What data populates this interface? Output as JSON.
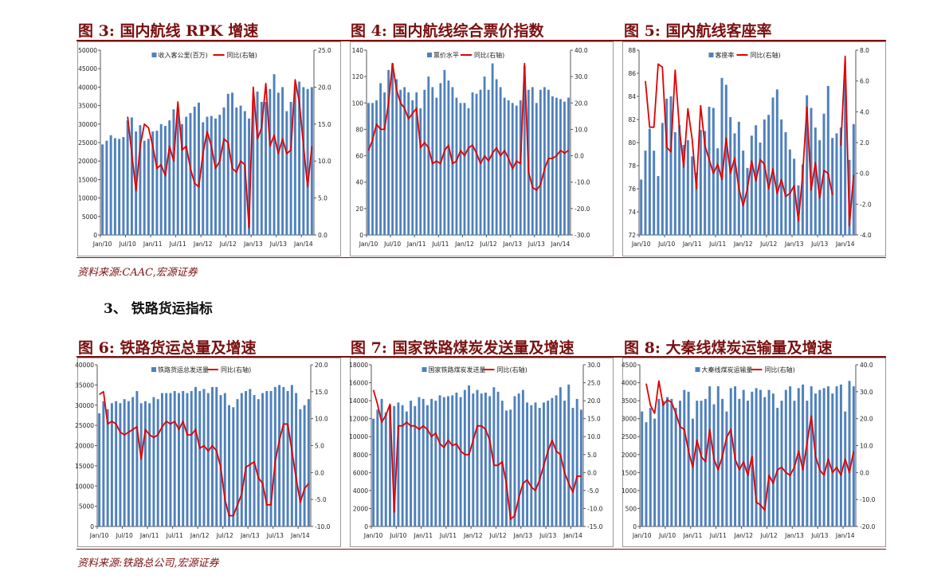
{
  "header": {
    "fig3_title": "图 3: 国内航线 RPK 增速",
    "fig4_title": "图 4: 国内航线综合票价指数",
    "fig5_title": "图 5: 国内航线客座率",
    "fig6_title": "图 6: 铁路货运总量及增速",
    "fig7_title": "图 7: 国家铁路煤炭发送量及增速",
    "fig8_title": "图 8: 大秦线煤炭运输量及增速"
  },
  "source_top": "资料来源:CAAC,宏源证券",
  "section_heading": "3、 铁路货运指标",
  "source_bottom": "资料来源:铁路总公司,宏源证券",
  "colors": {
    "bar": "#4f81bd",
    "line": "#e00000",
    "title": "#7a1010"
  },
  "x_tick_labels": [
    "Jan/10",
    "Jul/10",
    "Jan/11",
    "Jul/11",
    "Jan/12",
    "Jul/12",
    "Jan/13",
    "Jul/13",
    "Jan/14"
  ],
  "chart_data": [
    {
      "id": "fig3",
      "type": "bar+line",
      "x_start": "2010-01",
      "x_end": "2014-03",
      "bar_series": {
        "name": "收入客公里(百万)",
        "ylim": [
          0,
          50000
        ],
        "ticks": [
          "0",
          "5000",
          "10000",
          "15000",
          "20000",
          "25000",
          "30000",
          "35000",
          "40000",
          "45000",
          "50000"
        ],
        "values": [
          24500,
          25500,
          27000,
          26200,
          26000,
          26500,
          31000,
          31800,
          28000,
          29700,
          25500,
          26000,
          28000,
          28200,
          30000,
          29500,
          31000,
          34000,
          34200,
          30000,
          32000,
          33000,
          34700,
          35800,
          30500,
          32000,
          32200,
          31500,
          32500,
          34500,
          38200,
          38500,
          34500,
          35000,
          33500,
          31500,
          36500,
          38800,
          36000,
          36000,
          39500,
          43500,
          38500,
          40000,
          33500,
          36000,
          40000,
          41500,
          40000,
          39500,
          40000
        ]
      },
      "line_series": {
        "name": "同比(右轴)",
        "ylim": [
          0,
          25
        ],
        "ticks": [
          "0.0",
          "5.0",
          "10.0",
          "15.0",
          "20.0",
          "25.0"
        ],
        "values": [
          null,
          null,
          null,
          null,
          null,
          null,
          16,
          11,
          6,
          12,
          15,
          14.5,
          12,
          9,
          9.5,
          8,
          12,
          10,
          18,
          11.5,
          12,
          9,
          7,
          6.5,
          11,
          14,
          12,
          9,
          10,
          13,
          12.5,
          9,
          8.5,
          10,
          9.5,
          1,
          20,
          13,
          14.5,
          20.5,
          12,
          13.5,
          11,
          13,
          11,
          11.5,
          21,
          18,
          12,
          6.5,
          12
        ]
      }
    },
    {
      "id": "fig4",
      "type": "bar+line",
      "x_start": "2010-01",
      "x_end": "2014-03",
      "bar_series": {
        "name": "票价水平",
        "ylim": [
          0,
          140
        ],
        "ticks": [
          "0",
          "20",
          "40",
          "60",
          "80",
          "100",
          "120",
          "140"
        ],
        "values": [
          100,
          100,
          102,
          115,
          108,
          125,
          130,
          118,
          110,
          112,
          108,
          102,
          108,
          96,
          110,
          120,
          112,
          104,
          115,
          125,
          117,
          112,
          104,
          100,
          100,
          96,
          108,
          107,
          110,
          120,
          110,
          130,
          118,
          112,
          104,
          102,
          100,
          98,
          102,
          128,
          110,
          112,
          100,
          110,
          112,
          110,
          105,
          104,
          103,
          101,
          104
        ]
      },
      "line_series": {
        "name": "同比(右轴)",
        "ylim": [
          -30,
          40
        ],
        "ticks": [
          "-30.0",
          "-20.0",
          "-10.0",
          "0.0",
          "10.0",
          "20.0",
          "30.0",
          "40.0"
        ],
        "values": [
          2,
          6,
          12,
          10,
          10,
          20,
          35,
          25,
          20,
          18,
          14,
          16,
          18,
          3,
          5,
          3,
          -3,
          -2,
          -3,
          2,
          4,
          -3,
          -2,
          2,
          0,
          3,
          4,
          1,
          -3,
          0,
          -2,
          1,
          3,
          0,
          2,
          -1,
          -5,
          -2,
          -3,
          35,
          -6,
          -12,
          -13,
          -11,
          -5,
          -1,
          -1,
          0,
          2,
          1,
          2
        ]
      }
    },
    {
      "id": "fig5",
      "type": "bar+line",
      "x_start": "2010-01",
      "x_end": "2014-03",
      "bar_series": {
        "name": "客座率",
        "ylim": [
          72,
          88
        ],
        "ticks": [
          "72",
          "74",
          "76",
          "78",
          "80",
          "82",
          "84",
          "86",
          "88"
        ],
        "values": [
          76.8,
          79.3,
          81.2,
          79.3,
          77.1,
          81.7,
          83.8,
          84,
          80.9,
          81.5,
          79.8,
          80.2,
          78.8,
          77.4,
          81.1,
          81,
          83.1,
          83,
          79.5,
          85.6,
          85,
          82.2,
          80.8,
          81.8,
          79.3,
          77.8,
          80.6,
          81.5,
          80,
          82,
          82.4,
          83.9,
          84.6,
          82,
          80.9,
          79.4,
          78.6,
          76.3,
          78.1,
          84.1,
          83,
          81.3,
          80.2,
          82.5,
          84.9,
          80.4,
          80.8,
          81.3,
          85.5,
          78.5,
          81.6
        ]
      },
      "line_series": {
        "name": "同比(右轴)",
        "ylim": [
          -4,
          8
        ],
        "ticks": [
          "-4.0",
          "-2.0",
          "0.0",
          "2.0",
          "4.0",
          "6.0",
          "8.0"
        ],
        "values": [
          null,
          6,
          3,
          3,
          7.1,
          6.9,
          1.7,
          1.4,
          6.7,
          2.9,
          0.4,
          4.2,
          2.2,
          -1,
          4.4,
          1.8,
          0.9,
          0,
          0.6,
          -0.4,
          2.3,
          0,
          1,
          -1,
          -2.1,
          -1,
          0.8,
          -0.5,
          0.9,
          0.6,
          -1,
          0.3,
          -1.3,
          -0.4,
          -1.5,
          -1.3,
          -0.8,
          -3.1,
          -0.1,
          4.3,
          -1.1,
          0.7,
          -1.6,
          0.2,
          0,
          -1.4,
          null,
          1.8,
          7.6,
          -3.4,
          -0.1
        ]
      }
    },
    {
      "id": "fig6",
      "type": "bar+line",
      "x_start": "2010-01",
      "x_end": "2014-03",
      "bar_series": {
        "name": "铁路货运总发送量",
        "ylim": [
          0,
          40000
        ],
        "ticks": [
          "0",
          "5000",
          "10000",
          "15000",
          "20000",
          "25000",
          "30000",
          "35000",
          "40000"
        ],
        "values": [
          28000,
          31000,
          29000,
          30500,
          31000,
          30500,
          31500,
          31000,
          32000,
          33500,
          30500,
          31000,
          30500,
          32000,
          31500,
          33000,
          33000,
          33000,
          33500,
          33000,
          33500,
          33000,
          33500,
          34500,
          33500,
          34000,
          33000,
          34500,
          34500,
          32500,
          33000,
          30000,
          29500,
          31500,
          33000,
          33500,
          34000,
          32500,
          31500,
          33000,
          33500,
          33500,
          34500,
          35000,
          34500,
          33500,
          35000,
          33000,
          29000,
          30000,
          31500
        ]
      },
      "line_series": {
        "name": "同比(右轴)",
        "ylim": [
          -10,
          20
        ],
        "ticks": [
          "-10.0",
          "-5.0",
          "0.0",
          "5.0",
          "10.0",
          "15.0",
          "20.0"
        ],
        "values": [
          14.5,
          15,
          9,
          9.5,
          9,
          7.5,
          7,
          7.5,
          8,
          8.5,
          2.5,
          8,
          7,
          6.5,
          7,
          8.5,
          9.5,
          9,
          9.5,
          8,
          9.5,
          7,
          7,
          8,
          4.5,
          5,
          4,
          5,
          4,
          1,
          -5,
          -8,
          -8,
          -6,
          -4,
          1,
          1.5,
          2,
          -1,
          -2,
          -6,
          -6,
          2,
          6,
          9,
          9,
          4,
          -1,
          -5.5,
          -3,
          -2
        ]
      }
    },
    {
      "id": "fig7",
      "type": "bar+line",
      "x_start": "2010-01",
      "x_end": "2014-03",
      "bar_series": {
        "name": "国家铁路煤炭发送量",
        "ylim": [
          0,
          18000
        ],
        "ticks": [
          "0",
          "2000",
          "4000",
          "6000",
          "8000",
          "10000",
          "12000",
          "14000",
          "16000",
          "18000"
        ],
        "values": [
          12000,
          13000,
          14200,
          12700,
          13500,
          13400,
          13800,
          13500,
          12800,
          14000,
          13400,
          14400,
          14200,
          13500,
          14200,
          14000,
          14600,
          14400,
          14500,
          14600,
          14900,
          14400,
          15200,
          15700,
          14800,
          15200,
          14800,
          14900,
          14500,
          15500,
          15000,
          14000,
          12900,
          13000,
          14500,
          14800,
          15200,
          13800,
          13500,
          13800,
          13200,
          13800,
          14000,
          14300,
          14600,
          15500,
          14000,
          15800,
          13200,
          14200,
          13000
        ]
      },
      "line_series": {
        "name": "同比(右轴)",
        "ylim": [
          -15,
          30
        ],
        "ticks": [
          "-15.0",
          "-10.0",
          "-5.0",
          "0.0",
          "5.0",
          "10.0",
          "15.0",
          "20.0",
          "25.0",
          "30.0"
        ],
        "values": [
          23,
          19,
          14,
          16,
          19,
          -11,
          13,
          13,
          14,
          13,
          13,
          12,
          13,
          12,
          10,
          11,
          8,
          7,
          9,
          7.5,
          8,
          6,
          5,
          5,
          9,
          13,
          13,
          12,
          9,
          2,
          2,
          3,
          -3,
          -13,
          -12,
          -7,
          -3,
          -2,
          -4,
          -5,
          -2,
          2,
          6,
          9,
          6,
          5,
          0,
          -3,
          -5.5,
          -1,
          -1
        ]
      }
    },
    {
      "id": "fig8",
      "type": "bar+line",
      "x_start": "2010-01",
      "x_end": "2014-03",
      "bar_series": {
        "name": "大秦线煤炭运输量",
        "ylim": [
          0,
          4500
        ],
        "ticks": [
          "0",
          "500",
          "1000",
          "1500",
          "2000",
          "2500",
          "3000",
          "3500",
          "4000",
          "4500"
        ],
        "values": [
          3200,
          2900,
          3300,
          3000,
          3550,
          3500,
          3600,
          3550,
          3300,
          3500,
          3800,
          3750,
          3000,
          3500,
          3500,
          3550,
          3900,
          3400,
          3900,
          3550,
          3200,
          3850,
          3900,
          3550,
          3800,
          3500,
          3750,
          3850,
          3800,
          3600,
          3800,
          3700,
          3300,
          3500,
          3800,
          3900,
          3500,
          3850,
          3950,
          3500,
          3900,
          3700,
          3800,
          3850,
          3900,
          3700,
          3900,
          3950,
          3200,
          4050,
          3900
        ]
      },
      "line_series": {
        "name": "同比(右轴)",
        "ylim": [
          -20,
          40
        ],
        "ticks": [
          "-20.0",
          "-10.0",
          "0.0",
          "10.0",
          "20.0",
          "30.0",
          "40.0"
        ],
        "values": [
          null,
          33,
          25,
          22,
          34,
          25,
          27,
          26,
          22,
          17,
          16,
          8,
          2,
          12,
          6,
          4,
          16,
          5,
          1,
          6,
          13,
          16,
          5,
          1,
          4,
          -1,
          6,
          -11,
          -12,
          -14,
          -1,
          -4,
          1,
          2,
          0,
          -1,
          2,
          8,
          1,
          11,
          21,
          6,
          1,
          -1,
          5,
          0,
          2,
          -1,
          5,
          0,
          8
        ]
      }
    }
  ]
}
